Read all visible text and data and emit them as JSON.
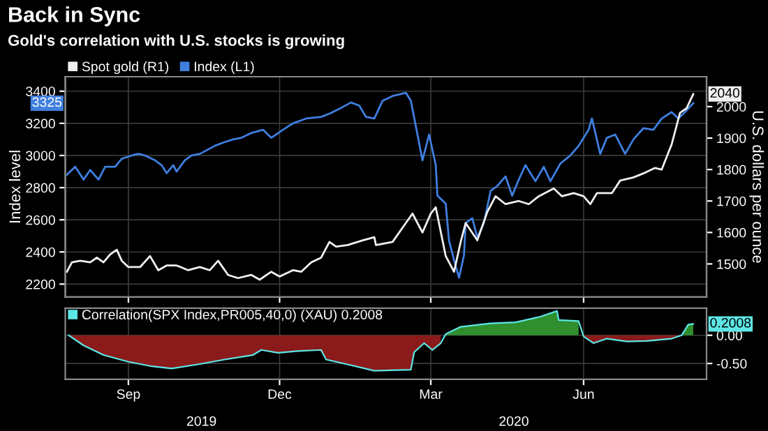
{
  "chart_data": [
    {
      "type": "line",
      "title": "Back in Sync",
      "subtitle": "Gold's correlation with U.S. stocks is growing",
      "ylabel": "Index level",
      "y2label": "U.S. dollars per ounce",
      "xlim": [
        "2019-07-25",
        "2020-08-14"
      ],
      "xticks": [
        {
          "value": "2019-09-01",
          "label": null
        },
        {
          "value": "2019-12-01",
          "label": null
        },
        {
          "value": "2020-03-01",
          "label": null
        },
        {
          "value": "2020-06-01",
          "label": null
        }
      ],
      "ylim": [
        2120,
        3490
      ],
      "yticks": [
        2200,
        2400,
        2600,
        2800,
        3000,
        3200,
        3400
      ],
      "y2lim": [
        1395,
        2095
      ],
      "y2ticks": [
        1500,
        1600,
        1700,
        1800,
        1900,
        2000
      ],
      "tick_labels": "y",
      "grid": true,
      "legend": "top left",
      "series": [
        {
          "name": "Spot gold (R1)",
          "color": "#f0f0f0",
          "axis": "y2",
          "x": [
            "2019-07-26",
            "2019-07-29",
            "2019-08-03",
            "2019-08-09",
            "2019-08-13",
            "2019-08-17",
            "2019-08-21",
            "2019-08-25",
            "2019-08-28",
            "2019-09-01",
            "2019-09-08",
            "2019-09-14",
            "2019-09-19",
            "2019-09-24",
            "2019-09-30",
            "2019-10-07",
            "2019-10-14",
            "2019-10-20",
            "2019-10-25",
            "2019-10-31",
            "2019-11-06",
            "2019-11-14",
            "2019-11-19",
            "2019-11-26",
            "2019-12-01",
            "2019-12-09",
            "2019-12-14",
            "2019-12-20",
            "2019-12-26",
            "2019-12-31",
            "2020-01-04",
            "2020-01-11",
            "2020-01-20",
            "2020-01-27",
            "2020-01-28",
            "2020-02-07",
            "2020-02-15",
            "2020-02-19",
            "2020-02-25",
            "2020-03-01",
            "2020-03-04",
            "2020-03-10",
            "2020-03-15",
            "2020-03-19",
            "2020-03-22",
            "2020-03-29",
            "2020-04-04",
            "2020-04-09",
            "2020-04-15",
            "2020-04-23",
            "2020-04-29",
            "2020-05-05",
            "2020-05-14",
            "2020-05-19",
            "2020-05-26",
            "2020-06-01",
            "2020-06-05",
            "2020-06-09",
            "2020-06-18",
            "2020-06-23",
            "2020-07-01",
            "2020-07-08",
            "2020-07-14",
            "2020-07-18",
            "2020-07-24",
            "2020-07-29",
            "2020-08-02",
            "2020-08-06"
          ],
          "values": [
            1475,
            1505,
            1510,
            1505,
            1520,
            1505,
            1530,
            1545,
            1510,
            1490,
            1490,
            1525,
            1480,
            1495,
            1495,
            1480,
            1490,
            1480,
            1510,
            1465,
            1455,
            1465,
            1450,
            1475,
            1460,
            1480,
            1475,
            1505,
            1520,
            1570,
            1555,
            1560,
            1575,
            1585,
            1560,
            1570,
            1630,
            1660,
            1600,
            1660,
            1680,
            1525,
            1475,
            1570,
            1630,
            1575,
            1665,
            1715,
            1690,
            1700,
            1690,
            1715,
            1740,
            1715,
            1725,
            1715,
            1690,
            1725,
            1725,
            1765,
            1775,
            1790,
            1805,
            1800,
            1880,
            1980,
            1995,
            2040
          ]
        },
        {
          "name": "Index (L1)",
          "color": "#3f7fe0",
          "axis": "y",
          "x": [
            "2019-07-26",
            "2019-07-31",
            "2019-08-05",
            "2019-08-09",
            "2019-08-14",
            "2019-08-18",
            "2019-08-24",
            "2019-08-28",
            "2019-09-03",
            "2019-09-07",
            "2019-09-11",
            "2019-09-17",
            "2019-09-21",
            "2019-09-24",
            "2019-09-28",
            "2019-09-30",
            "2019-10-05",
            "2019-10-09",
            "2019-10-14",
            "2019-10-23",
            "2019-10-28",
            "2019-11-03",
            "2019-11-08",
            "2019-11-14",
            "2019-11-21",
            "2019-11-26",
            "2019-12-03",
            "2019-12-09",
            "2019-12-17",
            "2019-12-26",
            "2019-12-31",
            "2020-01-06",
            "2020-01-13",
            "2020-01-18",
            "2020-01-22",
            "2020-01-27",
            "2020-02-01",
            "2020-02-07",
            "2020-02-15",
            "2020-02-18",
            "2020-02-22",
            "2020-02-25",
            "2020-02-29",
            "2020-03-04",
            "2020-03-05",
            "2020-03-10",
            "2020-03-12",
            "2020-03-15",
            "2020-03-18",
            "2020-03-21",
            "2020-03-22",
            "2020-03-26",
            "2020-03-29",
            "2020-04-02",
            "2020-04-06",
            "2020-04-10",
            "2020-04-15",
            "2020-04-19",
            "2020-04-23",
            "2020-04-27",
            "2020-05-03",
            "2020-05-08",
            "2020-05-12",
            "2020-05-18",
            "2020-05-24",
            "2020-05-29",
            "2020-06-04",
            "2020-06-06",
            "2020-06-11",
            "2020-06-15",
            "2020-06-20",
            "2020-06-26",
            "2020-07-01",
            "2020-07-07",
            "2020-07-13",
            "2020-07-18",
            "2020-07-24",
            "2020-07-28",
            "2020-08-01",
            "2020-08-06"
          ],
          "values": [
            2880,
            2930,
            2850,
            2910,
            2850,
            2930,
            2930,
            2980,
            3000,
            3010,
            3000,
            2970,
            2940,
            2890,
            2940,
            2900,
            2970,
            3000,
            3010,
            3060,
            3080,
            3100,
            3110,
            3140,
            3160,
            3110,
            3160,
            3200,
            3230,
            3240,
            3260,
            3290,
            3330,
            3310,
            3240,
            3230,
            3340,
            3370,
            3390,
            3340,
            3130,
            2970,
            3130,
            2940,
            2750,
            2700,
            2470,
            2350,
            2240,
            2380,
            2580,
            2610,
            2490,
            2580,
            2780,
            2810,
            2870,
            2750,
            2850,
            2940,
            2840,
            2930,
            2840,
            2950,
            3000,
            3060,
            3160,
            3230,
            3010,
            3110,
            3130,
            3010,
            3100,
            3170,
            3160,
            3230,
            3270,
            3230,
            3270,
            3325
          ]
        }
      ],
      "annotations": [
        "2040",
        "3325"
      ]
    },
    {
      "type": "area",
      "xlim": [
        "2019-07-25",
        "2020-08-14"
      ],
      "xticks": [
        {
          "value": "2019-09-01",
          "label": "Sep"
        },
        {
          "value": "2019-12-01",
          "label": "Dec"
        },
        {
          "value": "2020-03-01",
          "label": "Mar"
        },
        {
          "value": "2020-06-01",
          "label": "Jun"
        }
      ],
      "x2lim": [
        "2019-07-25",
        "2020-08-14"
      ],
      "x2ticks": [
        {
          "value": "2019-10-15",
          "label": "2019"
        },
        {
          "value": "2020-04-20",
          "label": "2020"
        }
      ],
      "ylim": [
        -0.78,
        0.48
      ],
      "yticks": [
        {
          "value": 0,
          "label": "0.00"
        },
        {
          "value": -0.5,
          "label": "-0.50"
        }
      ],
      "grid": true,
      "legend": "top left",
      "x": [
        "2019-07-27",
        "2019-08-05",
        "2019-08-17",
        "2019-09-01",
        "2019-09-15",
        "2019-09-27",
        "2019-10-14",
        "2019-10-29",
        "2019-11-15",
        "2019-11-20",
        "2019-11-30",
        "2019-12-12",
        "2019-12-26",
        "2019-12-29",
        "2020-01-10",
        "2020-01-27",
        "2020-02-18",
        "2020-02-20",
        "2020-02-26",
        "2020-03-02",
        "2020-03-07",
        "2020-03-10",
        "2020-03-19",
        "2020-04-06",
        "2020-04-21",
        "2020-05-06",
        "2020-05-16",
        "2020-05-17",
        "2020-05-29",
        "2020-06-01",
        "2020-06-07",
        "2020-06-15",
        "2020-06-27",
        "2020-07-09",
        "2020-07-24",
        "2020-07-30",
        "2020-08-03",
        "2020-08-06"
      ],
      "series": [
        {
          "type": "area",
          "color": "#2f8f2f",
          "values": [
            null,
            null,
            null,
            null,
            null,
            null,
            null,
            null,
            null,
            null,
            null,
            null,
            null,
            null,
            null,
            null,
            null,
            null,
            null,
            null,
            null,
            0.02,
            0.15,
            0.21,
            0.23,
            0.33,
            0.43,
            0.27,
            0.25,
            null,
            null,
            null,
            null,
            null,
            null,
            0,
            0.19,
            0.2008
          ]
        },
        {
          "type": "area",
          "color": "#8b1a1a",
          "values": [
            0,
            -0.18,
            -0.35,
            -0.47,
            -0.55,
            -0.59,
            -0.51,
            -0.43,
            -0.35,
            -0.26,
            -0.31,
            -0.28,
            -0.26,
            -0.43,
            -0.51,
            -0.63,
            -0.61,
            -0.3,
            -0.14,
            -0.26,
            -0.14,
            null,
            null,
            null,
            null,
            null,
            null,
            null,
            null,
            -0.02,
            -0.14,
            -0.06,
            -0.11,
            -0.1,
            -0.06,
            0,
            null,
            null
          ]
        },
        {
          "name": "Correlation(SPX Index,PR005,40,0) (XAU) 0.2008",
          "type": "line",
          "color": "#5ee6e6",
          "values": [
            0,
            -0.18,
            -0.35,
            -0.47,
            -0.55,
            -0.59,
            -0.51,
            -0.43,
            -0.35,
            -0.26,
            -0.31,
            -0.28,
            -0.26,
            -0.43,
            -0.51,
            -0.63,
            -0.61,
            -0.3,
            -0.14,
            -0.26,
            -0.14,
            0.02,
            0.15,
            0.21,
            0.23,
            0.33,
            0.43,
            0.27,
            0.25,
            -0.02,
            -0.14,
            -0.06,
            -0.11,
            -0.1,
            -0.06,
            0,
            0.19,
            0.2008
          ]
        }
      ],
      "annotations": [
        "0.2008"
      ]
    }
  ]
}
